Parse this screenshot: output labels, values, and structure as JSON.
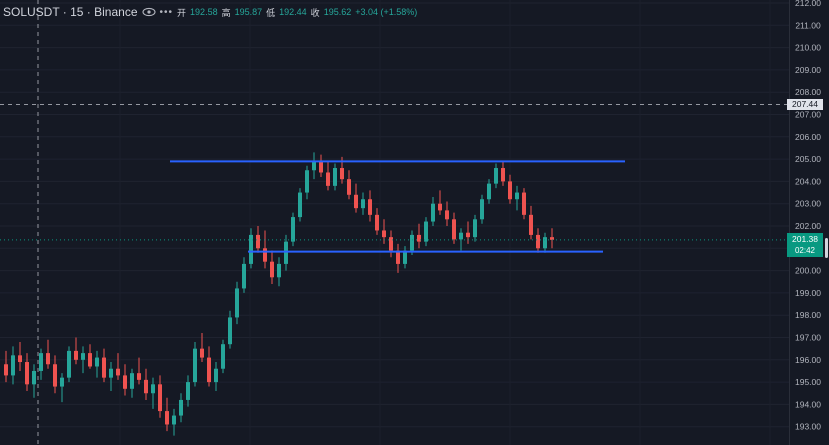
{
  "header": {
    "symbol": "SOLUSDT · 15 · Binance",
    "open_label": "开",
    "open": "192.58",
    "high_label": "高",
    "high": "195.87",
    "low_label": "低",
    "low": "192.44",
    "close_label": "收",
    "close": "195.62",
    "change": "+3.04 (+1.58%)",
    "visibility_icon": "eye-icon",
    "more_icon": "more-dots-icon"
  },
  "price_axis": {
    "ticks": [
      "212.00",
      "211.00",
      "210.00",
      "209.00",
      "208.00",
      "207.00",
      "206.00",
      "205.00",
      "204.00",
      "203.00",
      "202.00",
      "201.00",
      "200.00",
      "199.00",
      "198.00",
      "197.00",
      "196.00",
      "195.00",
      "194.00",
      "193.00"
    ],
    "crosshair_price": "207.44",
    "last_price": "201.38",
    "countdown": "02:42"
  },
  "colors": {
    "background": "#151924",
    "up": "#26a69a",
    "down": "#ef5350",
    "trendline": "#2962ff",
    "last_price_tag": "#089981"
  },
  "chart_data": {
    "type": "candlestick",
    "ylim": [
      192.6,
      212.2
    ],
    "trendlines": [
      {
        "level": 204.9
      },
      {
        "level": 200.85
      }
    ],
    "series": [
      {
        "values": [
          [
            195.8,
            196.4,
            195.0,
            195.3
          ],
          [
            195.3,
            196.6,
            194.9,
            196.2
          ],
          [
            196.2,
            196.8,
            195.5,
            195.9
          ],
          [
            195.9,
            196.3,
            194.6,
            194.9
          ],
          [
            194.9,
            195.8,
            194.3,
            195.5
          ],
          [
            195.5,
            196.5,
            195.1,
            196.3
          ],
          [
            196.3,
            196.9,
            195.6,
            195.8
          ],
          [
            195.8,
            196.2,
            194.5,
            194.8
          ],
          [
            194.8,
            195.4,
            194.1,
            195.2
          ],
          [
            195.2,
            196.6,
            195.0,
            196.4
          ],
          [
            196.4,
            197.0,
            195.8,
            196.0
          ],
          [
            196.0,
            196.6,
            195.4,
            196.3
          ],
          [
            196.3,
            196.7,
            195.6,
            195.7
          ],
          [
            195.7,
            196.4,
            195.2,
            196.1
          ],
          [
            196.1,
            196.5,
            195.0,
            195.2
          ],
          [
            195.2,
            195.9,
            194.6,
            195.6
          ],
          [
            195.6,
            196.3,
            195.1,
            195.3
          ],
          [
            195.3,
            195.8,
            194.4,
            194.7
          ],
          [
            194.7,
            195.6,
            194.3,
            195.4
          ],
          [
            195.4,
            196.1,
            194.9,
            195.1
          ],
          [
            195.1,
            195.6,
            194.2,
            194.5
          ],
          [
            194.5,
            195.2,
            193.8,
            194.9
          ],
          [
            194.9,
            195.3,
            193.4,
            193.7
          ],
          [
            193.7,
            194.3,
            192.8,
            193.1
          ],
          [
            193.1,
            193.8,
            192.6,
            193.5
          ],
          [
            193.5,
            194.5,
            193.2,
            194.2
          ],
          [
            194.2,
            195.3,
            193.9,
            195.0
          ],
          [
            195.0,
            196.8,
            194.8,
            196.5
          ],
          [
            196.5,
            197.2,
            195.9,
            196.1
          ],
          [
            196.1,
            196.6,
            194.8,
            195.0
          ],
          [
            195.0,
            195.9,
            194.6,
            195.6
          ],
          [
            195.6,
            196.9,
            195.4,
            196.7
          ],
          [
            196.7,
            198.2,
            196.5,
            197.9
          ],
          [
            197.9,
            199.5,
            197.6,
            199.2
          ],
          [
            199.2,
            200.6,
            199.0,
            200.3
          ],
          [
            200.3,
            201.9,
            200.1,
            201.6
          ],
          [
            201.6,
            202.0,
            200.8,
            201.0
          ],
          [
            201.0,
            201.8,
            200.1,
            200.4
          ],
          [
            200.4,
            200.9,
            199.4,
            199.7
          ],
          [
            199.7,
            200.6,
            199.3,
            200.3
          ],
          [
            200.3,
            201.6,
            200.0,
            201.3
          ],
          [
            201.3,
            202.6,
            201.1,
            202.4
          ],
          [
            202.4,
            203.7,
            202.2,
            203.5
          ],
          [
            203.5,
            204.7,
            203.2,
            204.5
          ],
          [
            204.5,
            205.3,
            204.1,
            204.9
          ],
          [
            204.9,
            205.2,
            204.2,
            204.4
          ],
          [
            204.4,
            204.9,
            203.6,
            203.8
          ],
          [
            203.8,
            204.8,
            203.6,
            204.6
          ],
          [
            204.6,
            205.1,
            203.9,
            204.1
          ],
          [
            204.1,
            204.5,
            203.2,
            203.4
          ],
          [
            203.4,
            203.9,
            202.6,
            202.8
          ],
          [
            202.8,
            203.5,
            202.5,
            203.2
          ],
          [
            203.2,
            203.6,
            202.2,
            202.5
          ],
          [
            202.5,
            202.8,
            201.6,
            201.8
          ],
          [
            201.8,
            202.3,
            201.2,
            201.5
          ],
          [
            201.5,
            201.8,
            200.6,
            200.9
          ],
          [
            200.9,
            201.2,
            199.9,
            200.3
          ],
          [
            200.3,
            201.1,
            200.1,
            200.9
          ],
          [
            200.9,
            201.8,
            200.7,
            201.6
          ],
          [
            201.6,
            202.1,
            201.0,
            201.3
          ],
          [
            201.3,
            202.4,
            201.1,
            202.2
          ],
          [
            202.2,
            203.3,
            202.0,
            203.0
          ],
          [
            203.0,
            203.6,
            202.5,
            202.7
          ],
          [
            202.7,
            203.1,
            202.0,
            202.3
          ],
          [
            202.3,
            202.6,
            201.2,
            201.4
          ],
          [
            201.4,
            201.9,
            200.9,
            201.7
          ],
          [
            201.7,
            202.2,
            201.2,
            201.5
          ],
          [
            201.5,
            202.5,
            201.3,
            202.3
          ],
          [
            202.3,
            203.4,
            202.1,
            203.2
          ],
          [
            203.2,
            204.1,
            203.0,
            203.9
          ],
          [
            203.9,
            204.8,
            203.7,
            204.6
          ],
          [
            204.6,
            204.9,
            203.8,
            204.0
          ],
          [
            204.0,
            204.3,
            203.0,
            203.2
          ],
          [
            203.2,
            203.8,
            202.7,
            203.5
          ],
          [
            203.5,
            203.7,
            202.3,
            202.5
          ],
          [
            202.5,
            202.9,
            201.4,
            201.6
          ],
          [
            201.6,
            201.9,
            200.8,
            201.0
          ],
          [
            201.0,
            201.7,
            200.8,
            201.5
          ],
          [
            201.5,
            201.9,
            201.0,
            201.38
          ]
        ]
      }
    ]
  }
}
